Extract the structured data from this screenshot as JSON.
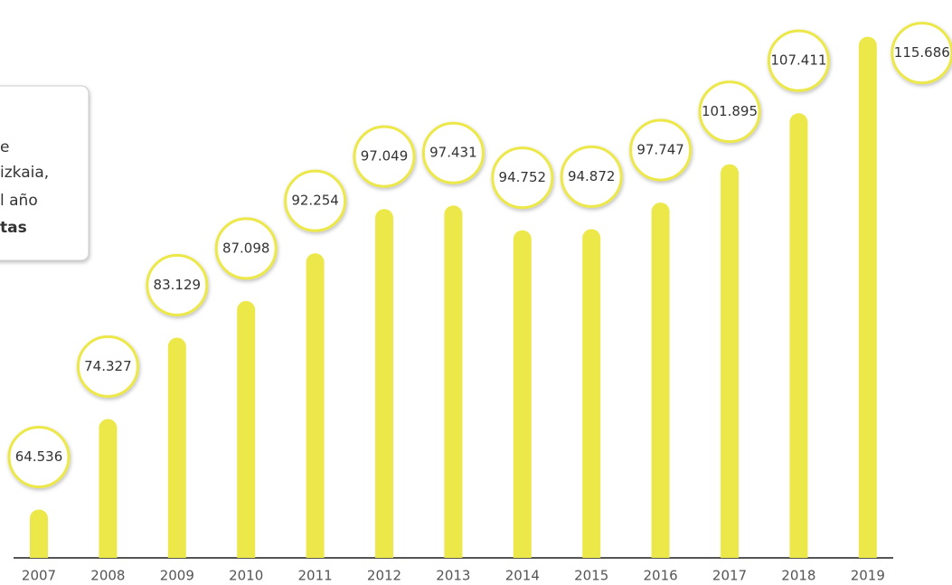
{
  "chart_data": {
    "type": "bar",
    "annotation_lines": [
      "e",
      "izkaia,",
      "l año",
      "tas"
    ],
    "categories": [
      "2007",
      "2008",
      "2009",
      "2010",
      "2011",
      "2012",
      "2013",
      "2014",
      "2015",
      "2016",
      "2017",
      "2018",
      "2019"
    ],
    "values": [
      64536,
      74327,
      83129,
      87098,
      92254,
      97049,
      97431,
      94752,
      94872,
      97747,
      101895,
      107411,
      115686
    ],
    "value_labels": [
      "64.536",
      "74.327",
      "83.129",
      "87.098",
      "92.254",
      "97.049",
      "97.431",
      "94.752",
      "94.872",
      "97.747",
      "101.895",
      "107.411",
      "115.686"
    ],
    "color": "#ede84a",
    "ylim": [
      59300,
      117700
    ]
  }
}
